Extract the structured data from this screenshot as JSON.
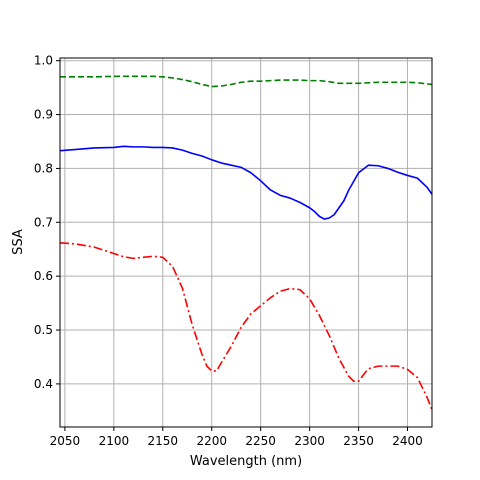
{
  "chart_data": {
    "type": "line",
    "xlabel": "Wavelength (nm)",
    "ylabel": "SSA",
    "xlim": [
      2045,
      2425
    ],
    "ylim": [
      0.32,
      1.005
    ],
    "xticks": [
      2050,
      2100,
      2150,
      2200,
      2250,
      2300,
      2350,
      2400
    ],
    "yticks": [
      0.4,
      0.5,
      0.6,
      0.7,
      0.8,
      0.9,
      1.0
    ],
    "grid": true,
    "series": [
      {
        "color": "#008000",
        "dash": "dashed",
        "x": [
          2045,
          2060,
          2080,
          2100,
          2120,
          2140,
          2150,
          2160,
          2170,
          2180,
          2190,
          2200,
          2210,
          2220,
          2230,
          2240,
          2250,
          2260,
          2270,
          2280,
          2290,
          2300,
          2310,
          2320,
          2330,
          2340,
          2350,
          2360,
          2370,
          2380,
          2390,
          2400,
          2410,
          2425
        ],
        "y": [
          0.97,
          0.97,
          0.97,
          0.971,
          0.971,
          0.971,
          0.97,
          0.968,
          0.965,
          0.961,
          0.956,
          0.952,
          0.953,
          0.956,
          0.96,
          0.962,
          0.962,
          0.963,
          0.964,
          0.964,
          0.964,
          0.963,
          0.963,
          0.961,
          0.958,
          0.958,
          0.958,
          0.959,
          0.96,
          0.96,
          0.96,
          0.96,
          0.959,
          0.956
        ]
      },
      {
        "color": "#0000ff",
        "dash": "solid",
        "x": [
          2045,
          2060,
          2080,
          2100,
          2110,
          2120,
          2130,
          2140,
          2150,
          2160,
          2170,
          2180,
          2190,
          2200,
          2210,
          2220,
          2230,
          2240,
          2250,
          2260,
          2270,
          2280,
          2290,
          2300,
          2305,
          2310,
          2315,
          2320,
          2325,
          2330,
          2335,
          2340,
          2350,
          2360,
          2370,
          2380,
          2390,
          2400,
          2410,
          2420,
          2425
        ],
        "y": [
          0.833,
          0.835,
          0.838,
          0.839,
          0.841,
          0.84,
          0.84,
          0.839,
          0.839,
          0.838,
          0.834,
          0.828,
          0.823,
          0.816,
          0.81,
          0.806,
          0.802,
          0.792,
          0.777,
          0.76,
          0.75,
          0.745,
          0.737,
          0.727,
          0.72,
          0.711,
          0.706,
          0.708,
          0.714,
          0.727,
          0.74,
          0.76,
          0.792,
          0.806,
          0.805,
          0.8,
          0.793,
          0.787,
          0.782,
          0.765,
          0.752
        ]
      },
      {
        "color": "#ff0000",
        "dash": "dashdot",
        "x": [
          2045,
          2060,
          2080,
          2100,
          2110,
          2120,
          2130,
          2140,
          2150,
          2160,
          2170,
          2180,
          2190,
          2195,
          2200,
          2205,
          2210,
          2220,
          2230,
          2240,
          2250,
          2260,
          2270,
          2280,
          2290,
          2300,
          2310,
          2320,
          2330,
          2340,
          2345,
          2350,
          2355,
          2360,
          2370,
          2380,
          2390,
          2400,
          2410,
          2420,
          2425
        ],
        "y": [
          0.662,
          0.66,
          0.654,
          0.642,
          0.636,
          0.633,
          0.635,
          0.637,
          0.635,
          0.618,
          0.578,
          0.51,
          0.455,
          0.433,
          0.424,
          0.424,
          0.44,
          0.47,
          0.505,
          0.53,
          0.545,
          0.56,
          0.572,
          0.577,
          0.575,
          0.558,
          0.527,
          0.49,
          0.447,
          0.414,
          0.405,
          0.405,
          0.417,
          0.428,
          0.433,
          0.433,
          0.433,
          0.427,
          0.412,
          0.375,
          0.352
        ]
      }
    ]
  }
}
